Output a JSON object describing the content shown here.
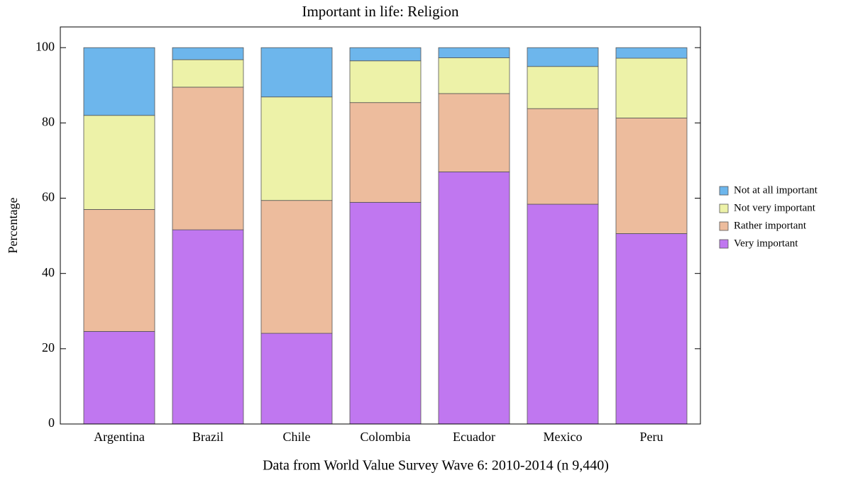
{
  "chart_data": {
    "type": "stacked_bar",
    "title": "Important in life: Religion",
    "y_label": "Percentage",
    "caption": "Data from World Value Survey Wave 6: 2010-2014 (n 9,440)",
    "categories": [
      "Argentina",
      "Brazil",
      "Chile",
      "Colombia",
      "Ecuador",
      "Mexico",
      "Peru"
    ],
    "series": [
      {
        "name": "Very important",
        "color": "#c077f0",
        "values": [
          24.6,
          51.6,
          24.1,
          58.9,
          67.0,
          58.4,
          50.6
        ]
      },
      {
        "name": "Rather important",
        "color": "#edbc9d",
        "values": [
          32.4,
          37.9,
          35.3,
          26.5,
          20.8,
          25.4,
          30.7
        ]
      },
      {
        "name": "Not very important",
        "color": "#edf2a8",
        "values": [
          25.0,
          7.3,
          27.5,
          11.1,
          9.5,
          11.2,
          15.9
        ]
      },
      {
        "name": "Not at all important",
        "color": "#6db6ec",
        "values": [
          18.0,
          3.2,
          13.1,
          3.5,
          2.7,
          5.0,
          2.8
        ]
      }
    ],
    "ylim": [
      0,
      105.5
    ],
    "yticks": [
      0,
      20,
      40,
      60,
      80,
      100
    ]
  }
}
